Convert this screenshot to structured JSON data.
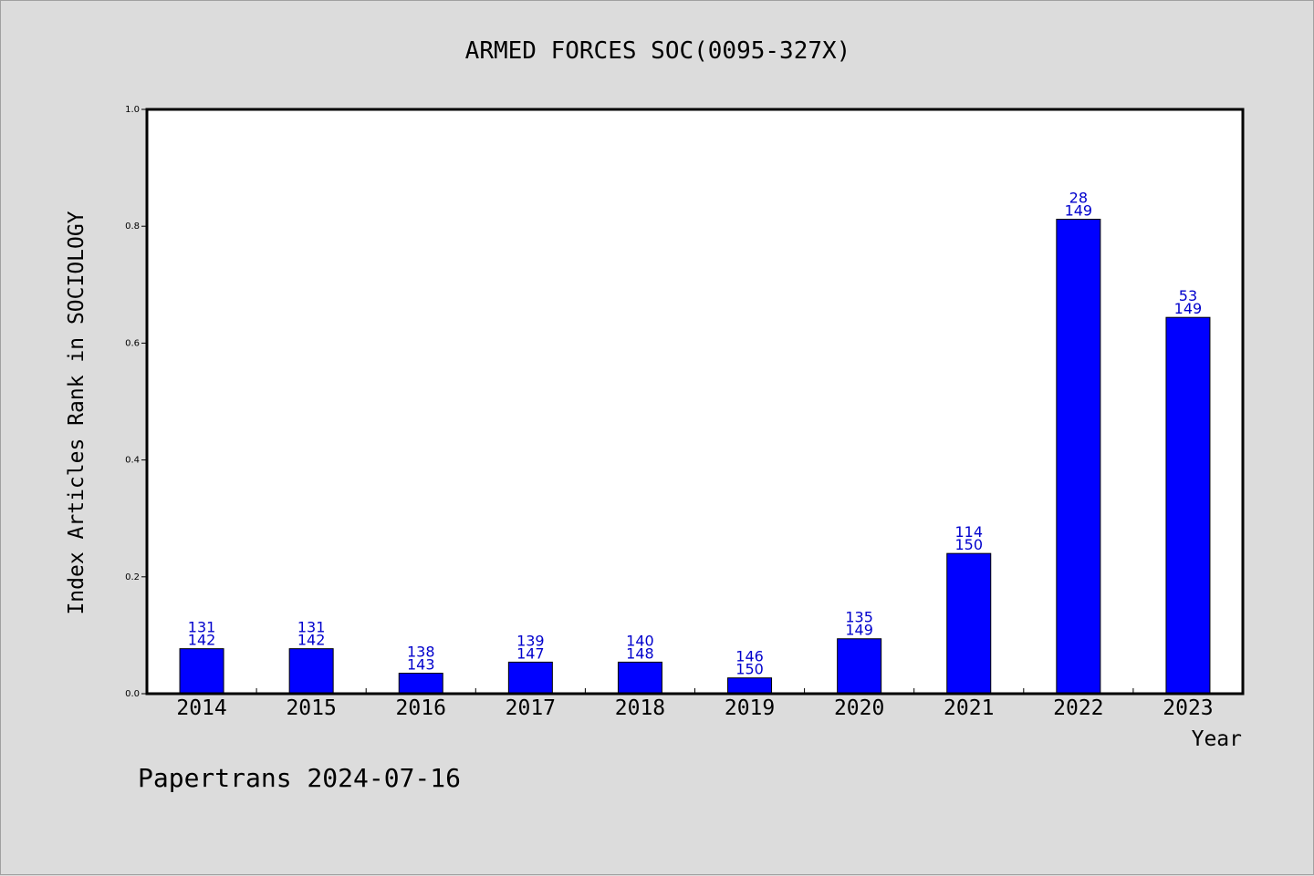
{
  "footer": {
    "text": "Papertrans 2024-07-16"
  },
  "chart_data": {
    "type": "bar",
    "title": "ARMED FORCES SOC(0095-327X)",
    "xlabel": "Year",
    "ylabel": "Index Articles Rank in SOCIOLOGY",
    "ylim": [
      0,
      1.0
    ],
    "yticks": [
      "0.0",
      "0.2",
      "0.4",
      "0.6",
      "0.8",
      "1.0"
    ],
    "grid": false,
    "categories": [
      "2014",
      "2015",
      "2016",
      "2017",
      "2018",
      "2019",
      "2020",
      "2021",
      "2022",
      "2023"
    ],
    "values": [
      0.077,
      0.077,
      0.035,
      0.054,
      0.054,
      0.027,
      0.094,
      0.24,
      0.812,
      0.644
    ],
    "rank": [
      "131",
      "131",
      "138",
      "139",
      "140",
      "146",
      "135",
      "114",
      "28",
      "53"
    ],
    "total": [
      "142",
      "142",
      "143",
      "147",
      "148",
      "150",
      "149",
      "150",
      "149",
      "149"
    ],
    "bar_color": "#0000ff",
    "label_color": "#0000cc"
  }
}
